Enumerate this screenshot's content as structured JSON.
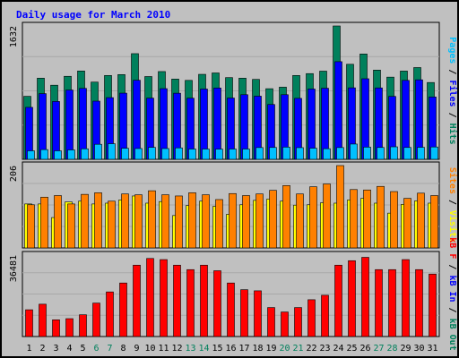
{
  "colors": {
    "background": "#c0c0c0",
    "frame": "#000000",
    "title": "#0000ff",
    "hits": "#00805c",
    "files": "#0000ff",
    "pages": "#00c0ff",
    "visits": "#ffff00",
    "sites": "#ff8000",
    "kbytes": "#ff0000",
    "weekday_label": "#000000",
    "weekend_label": "#00805c"
  },
  "chart_data": {
    "type": "bar",
    "title": "Daily usage for March 2010",
    "days": [
      "1",
      "2",
      "3",
      "4",
      "5",
      "6",
      "7",
      "8",
      "9",
      "10",
      "11",
      "12",
      "13",
      "14",
      "15",
      "16",
      "17",
      "18",
      "19",
      "20",
      "21",
      "22",
      "23",
      "24",
      "25",
      "26",
      "27",
      "28",
      "29",
      "30",
      "31"
    ],
    "weekend_days": [
      "6",
      "7",
      "13",
      "14",
      "20",
      "21",
      "27",
      "28"
    ],
    "panels": [
      {
        "name": "hits-files-pages",
        "max_label": "1632",
        "ymax": 1632,
        "axis_labels": [
          {
            "text": "Pages",
            "color": "#00c0ff"
          },
          {
            "text": " / ",
            "color": "#000000"
          },
          {
            "text": "Files",
            "color": "#0000ff"
          },
          {
            "text": " / ",
            "color": "#000000"
          },
          {
            "text": "Hits",
            "color": "#00805c"
          }
        ],
        "series": [
          {
            "name": "Hits",
            "color": "#00805c",
            "values": [
              771,
              993,
              907,
              1016,
              1081,
              945,
              1026,
              1037,
              1293,
              1013,
              1074,
              982,
              966,
              1040,
              1057,
              1000,
              993,
              978,
              864,
              883,
              1026,
              1049,
              1079,
              1632,
              1163,
              1289,
              1092,
              1006,
              1080,
              1123,
              940
            ]
          },
          {
            "name": "Files",
            "color": "#0000ff",
            "values": [
              636,
              804,
              708,
              848,
              868,
              712,
              755,
              810,
              968,
              749,
              865,
              809,
              748,
              860,
              873,
              750,
              791,
              773,
              671,
              791,
              746,
              860,
              870,
              1195,
              875,
              986,
              874,
              770,
              966,
              973,
              763
            ]
          },
          {
            "name": "Pages",
            "color": "#00c0ff",
            "values": [
              104,
              119,
              104,
              115,
              129,
              184,
              191,
              135,
              132,
              146,
              132,
              140,
              126,
              126,
              125,
              126,
              126,
              144,
              145,
              149,
              143,
              136,
              130,
              144,
              187,
              149,
              145,
              153,
              145,
              147,
              151
            ]
          }
        ]
      },
      {
        "name": "visits-sites",
        "max_label": "206",
        "ymax": 206,
        "axis_labels": [
          {
            "text": "Sites",
            "color": "#ff8000"
          },
          {
            "text": " / ",
            "color": "#000000"
          },
          {
            "text": "Visits",
            "color": "#ffff00"
          }
        ],
        "series": [
          {
            "name": "Visits",
            "color": "#ffff00",
            "values": [
              110,
              110,
              76,
              115,
              117,
              110,
              112,
              120,
              130,
              112,
              116,
              81,
              106,
              117,
              104,
              84,
              108,
              119,
              122,
              117,
              107,
              108,
              113,
              112,
              120,
              124,
              112,
              87,
              109,
              118,
              112
            ]
          },
          {
            "name": "Sites",
            "color": "#ff8000",
            "values": [
              108,
              127,
              131,
              110,
              134,
              138,
              117,
              135,
              133,
              143,
              133,
              130,
              138,
              133,
              121,
              136,
              131,
              135,
              144,
              156,
              135,
              153,
              160,
              206,
              146,
              145,
              154,
              141,
              124,
              137,
              131
            ]
          }
        ]
      },
      {
        "name": "kbytes",
        "max_label": "36481",
        "ymax": 36481,
        "axis_labels": [
          {
            "text": "kB F",
            "color": "#ff0000"
          },
          {
            "text": " / ",
            "color": "#000000"
          },
          {
            "text": "kB In",
            "color": "#0000ff"
          },
          {
            "text": " / ",
            "color": "#000000"
          },
          {
            "text": "kB Out",
            "color": "#00805c"
          }
        ],
        "series": [
          {
            "name": "kB F",
            "color": "#ff0000",
            "values": [
              11985,
              14483,
              7491,
              8003,
              9742,
              14985,
              19981,
              23976,
              31968,
              34965,
              34465,
              31968,
              29970,
              31968,
              29470,
              23976,
              20980,
              20480,
              12987,
              10989,
              12987,
              16484,
              18484,
              31968,
              33966,
              35465,
              29970,
              29970,
              34465,
              29970,
              27972
            ]
          }
        ]
      }
    ]
  }
}
